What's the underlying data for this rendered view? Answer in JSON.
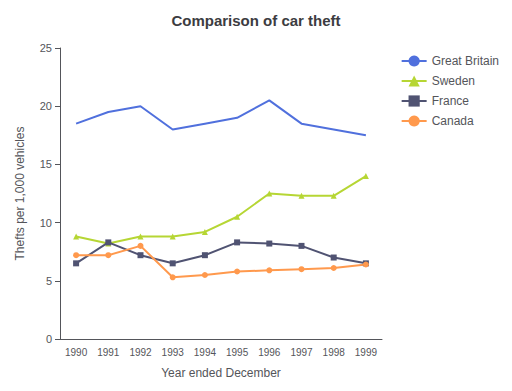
{
  "chart_data": {
    "type": "line",
    "title": "Comparison of car theft",
    "x_label": "Year ended December",
    "y_label": "Thefts per 1,000 vehicles",
    "categories": [
      "1990",
      "1991",
      "1992",
      "1993",
      "1994",
      "1995",
      "1996",
      "1997",
      "1998",
      "1999"
    ],
    "series": [
      {
        "name": "Great Britain",
        "marker": "none",
        "line_style": "solid",
        "values": [
          18.5,
          19.5,
          20.0,
          18.0,
          18.5,
          19.0,
          20.5,
          18.5,
          18.0,
          17.5
        ]
      },
      {
        "name": "Sweden",
        "marker": "triangle",
        "line_style": "solid",
        "values": [
          8.8,
          8.2,
          8.8,
          8.8,
          9.2,
          10.5,
          12.5,
          12.3,
          12.3,
          14.0
        ]
      },
      {
        "name": "France",
        "marker": "square",
        "line_style": "solid",
        "values": [
          6.5,
          8.3,
          7.2,
          6.5,
          7.2,
          8.3,
          8.2,
          8.0,
          7.0,
          6.5
        ]
      },
      {
        "name": "Canada",
        "marker": "circle",
        "line_style": "solid",
        "values": [
          7.2,
          7.2,
          8.0,
          5.3,
          5.5,
          5.8,
          5.9,
          6.0,
          6.1,
          6.4
        ]
      }
    ],
    "ylim": [
      0,
      25
    ],
    "yticks": [
      0,
      5,
      10,
      15,
      20,
      25
    ],
    "grid": false,
    "legend": "right"
  }
}
